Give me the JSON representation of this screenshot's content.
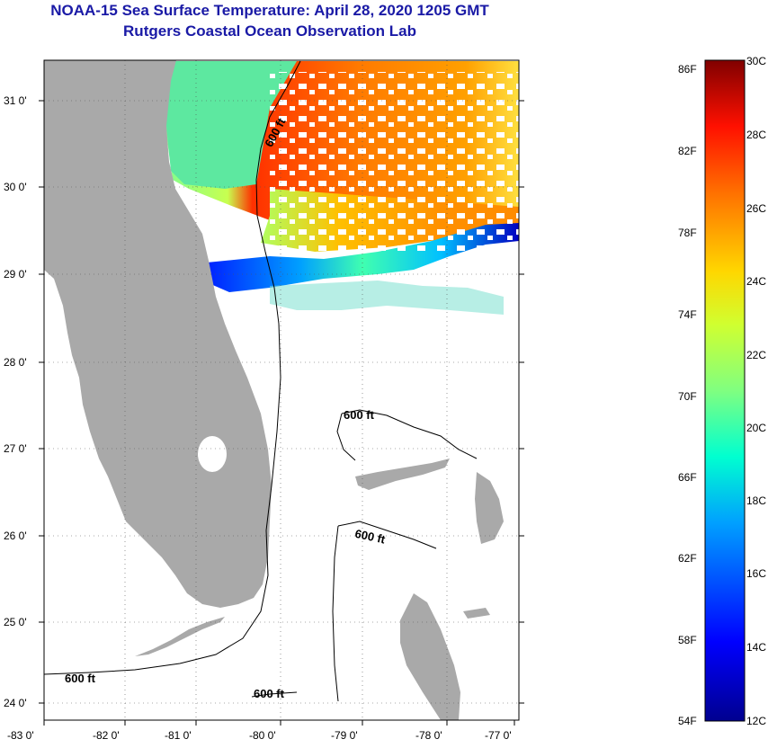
{
  "title": {
    "line1": "NOAA-15 Sea Surface Temperature:  April 28, 2020 1205 GMT",
    "line2": "Rutgers Coastal Ocean Observation Lab"
  },
  "map": {
    "lon_labels": [
      "-83 0'",
      "-82 0'",
      "-81 0'",
      "-80 0'",
      "-79 0'",
      "-78 0'",
      "-77 0'"
    ],
    "lat_labels": [
      "31 0'",
      "30 0'",
      "29 0'",
      "28 0'",
      "27 0'",
      "26 0'",
      "25 0'",
      "24 0'"
    ],
    "contour_label": "600 ft",
    "land_color": "#a9a9a9",
    "grid": "dotted"
  },
  "colorbar": {
    "f_labels": [
      "86F",
      "82F",
      "78F",
      "74F",
      "70F",
      "66F",
      "62F",
      "58F",
      "54F"
    ],
    "c_labels": [
      "30C",
      "28C",
      "26C",
      "24C",
      "22C",
      "20C",
      "18C",
      "16C",
      "14C",
      "12C"
    ]
  }
}
